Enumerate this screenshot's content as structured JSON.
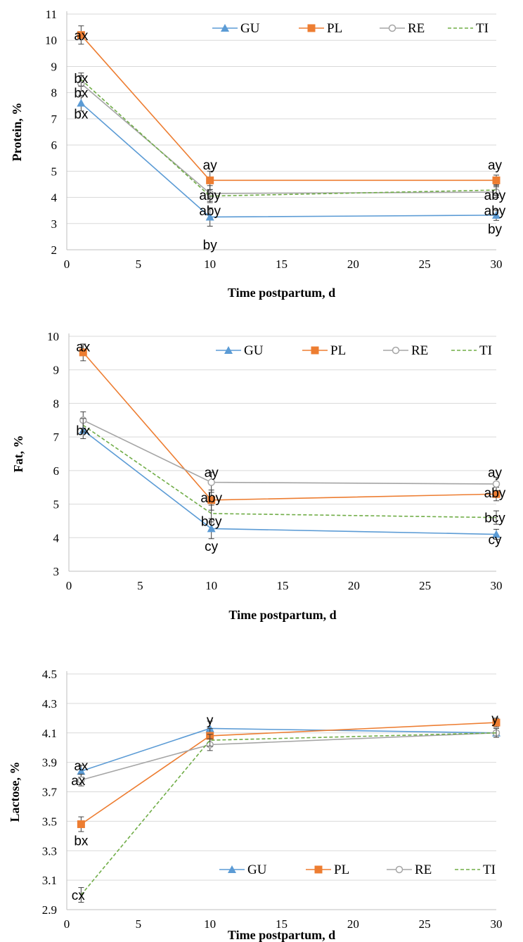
{
  "colors": {
    "GU": "#5b9bd5",
    "PL": "#ed7d31",
    "RE": "#a5a5a5",
    "TI": "#70ad47",
    "grid": "#d9d9d9",
    "errorbar": "#404040"
  },
  "chart_data": [
    {
      "type": "line",
      "xlabel": "Time postpartum,  d",
      "ylabel": "Protein, %",
      "xlim": [
        0,
        30
      ],
      "ylim": [
        2,
        11
      ],
      "xticks": [
        0,
        5,
        10,
        15,
        20,
        25,
        30
      ],
      "yticks": [
        2,
        3,
        4,
        5,
        6,
        7,
        8,
        9,
        10,
        11
      ],
      "ytick_labels": [
        "2",
        "3",
        "4",
        "5",
        "6",
        "7",
        "8",
        "9",
        "10",
        "11"
      ],
      "grid": true,
      "legend_position": "top-right",
      "x": [
        1,
        10,
        30
      ],
      "series": [
        {
          "name": "GU",
          "marker": "triangle",
          "dashed": false,
          "values": [
            7.6,
            3.25,
            3.32
          ],
          "errors": [
            0.3,
            0.35,
            0.2
          ]
        },
        {
          "name": "PL",
          "marker": "square",
          "dashed": false,
          "values": [
            10.2,
            4.65,
            4.65
          ],
          "errors": [
            0.35,
            0.35,
            0.2
          ]
        },
        {
          "name": "RE",
          "marker": "circle",
          "dashed": false,
          "values": [
            8.35,
            4.15,
            4.2
          ],
          "errors": [
            0.3,
            0.3,
            0.2
          ]
        },
        {
          "name": "TI",
          "marker": "none",
          "dashed": true,
          "values": [
            8.5,
            4.05,
            4.28
          ],
          "errors": [
            0.25,
            0.25,
            0.2
          ]
        }
      ],
      "annotations": [
        {
          "text": "ax",
          "x": 1,
          "y": 10.2
        },
        {
          "text": "bx",
          "x": 1,
          "y": 8.55
        },
        {
          "text": "bx",
          "x": 1,
          "y": 8.0
        },
        {
          "text": "bx",
          "x": 1,
          "y": 7.2
        },
        {
          "text": "ay",
          "x": 10,
          "y": 5.25
        },
        {
          "text": "aby",
          "x": 10,
          "y": 4.1
        },
        {
          "text": "aby",
          "x": 10,
          "y": 3.5
        },
        {
          "text": "by",
          "x": 10,
          "y": 2.2
        },
        {
          "text": "ay",
          "x": 30,
          "y": 5.25
        },
        {
          "text": "aby",
          "x": 30,
          "y": 4.1
        },
        {
          "text": "aby",
          "x": 30,
          "y": 3.5
        },
        {
          "text": "by",
          "x": 30,
          "y": 2.8
        }
      ]
    },
    {
      "type": "line",
      "xlabel": "Time postpartum,  d",
      "ylabel": "Fat, %",
      "xlim": [
        0,
        30
      ],
      "ylim": [
        3,
        10
      ],
      "xticks": [
        0,
        5,
        10,
        15,
        20,
        25,
        30
      ],
      "yticks": [
        3,
        4,
        5,
        6,
        7,
        8,
        9,
        10
      ],
      "ytick_labels": [
        "3",
        "4",
        "5",
        "6",
        "7",
        "8",
        "9",
        "10"
      ],
      "grid": true,
      "legend_position": "top-right",
      "x": [
        1,
        10,
        30
      ],
      "series": [
        {
          "name": "GU",
          "marker": "triangle",
          "dashed": false,
          "values": [
            7.2,
            4.27,
            4.1
          ],
          "errors": [
            0.25,
            0.3,
            0.15
          ]
        },
        {
          "name": "PL",
          "marker": "square",
          "dashed": false,
          "values": [
            9.52,
            5.12,
            5.3
          ],
          "errors": [
            0.25,
            0.3,
            0.2
          ]
        },
        {
          "name": "RE",
          "marker": "circle",
          "dashed": false,
          "values": [
            7.5,
            5.65,
            5.6
          ],
          "errors": [
            0.25,
            0.3,
            0.2
          ]
        },
        {
          "name": "TI",
          "marker": "none",
          "dashed": true,
          "values": [
            7.35,
            4.72,
            4.6
          ],
          "errors": [
            0.2,
            0.25,
            0.2
          ]
        }
      ],
      "annotations": [
        {
          "text": "ax",
          "x": 1,
          "y": 9.7
        },
        {
          "text": "bx",
          "x": 1,
          "y": 7.2
        },
        {
          "text": "ay",
          "x": 10,
          "y": 5.95
        },
        {
          "text": "aby",
          "x": 10,
          "y": 5.2
        },
        {
          "text": "bcy",
          "x": 10,
          "y": 4.5
        },
        {
          "text": "cy",
          "x": 10,
          "y": 3.75
        },
        {
          "text": "ay",
          "x": 30,
          "y": 5.95
        },
        {
          "text": "aby",
          "x": 30,
          "y": 5.35
        },
        {
          "text": "bcy",
          "x": 30,
          "y": 4.6
        },
        {
          "text": "cy",
          "x": 30,
          "y": 3.95
        }
      ]
    },
    {
      "type": "line",
      "xlabel": "Time postpartum,  d",
      "ylabel": "Lactose, %",
      "xlim": [
        0,
        30
      ],
      "ylim": [
        2.9,
        4.5
      ],
      "xticks": [
        0,
        5,
        10,
        15,
        20,
        25,
        30
      ],
      "yticks": [
        2.9,
        3.1,
        3.3,
        3.5,
        3.7,
        3.9,
        4.1,
        4.3,
        4.5
      ],
      "ytick_labels": [
        "2.9",
        "3.1",
        "3.3",
        "3.5",
        "3.7",
        "3.9",
        "4.1",
        "4.3",
        "4.5"
      ],
      "grid": true,
      "legend_position": "bottom-right",
      "x": [
        1,
        10,
        30
      ],
      "series": [
        {
          "name": "GU",
          "marker": "triangle",
          "dashed": false,
          "values": [
            3.84,
            4.13,
            4.1
          ],
          "errors": [
            0.04,
            0.05,
            0.03
          ]
        },
        {
          "name": "PL",
          "marker": "square",
          "dashed": false,
          "values": [
            3.48,
            4.08,
            4.17
          ],
          "errors": [
            0.05,
            0.05,
            0.03
          ]
        },
        {
          "name": "RE",
          "marker": "circle",
          "dashed": false,
          "values": [
            3.78,
            4.02,
            4.1
          ],
          "errors": [
            0.04,
            0.04,
            0.03
          ]
        },
        {
          "name": "TI",
          "marker": "none",
          "dashed": true,
          "values": [
            3.0,
            4.05,
            4.1
          ],
          "errors": [
            0.05,
            0.04,
            0.03
          ]
        }
      ],
      "annotations": [
        {
          "text": "ax",
          "x": 1,
          "y": 3.88
        },
        {
          "text": "ax",
          "x": 0.8,
          "y": 3.78
        },
        {
          "text": "bx",
          "x": 1,
          "y": 3.37
        },
        {
          "text": "cx",
          "x": 0.8,
          "y": 3.0
        },
        {
          "text": "y",
          "x": 10,
          "y": 4.19
        },
        {
          "text": "y",
          "x": 30,
          "y": 4.2
        }
      ]
    }
  ]
}
